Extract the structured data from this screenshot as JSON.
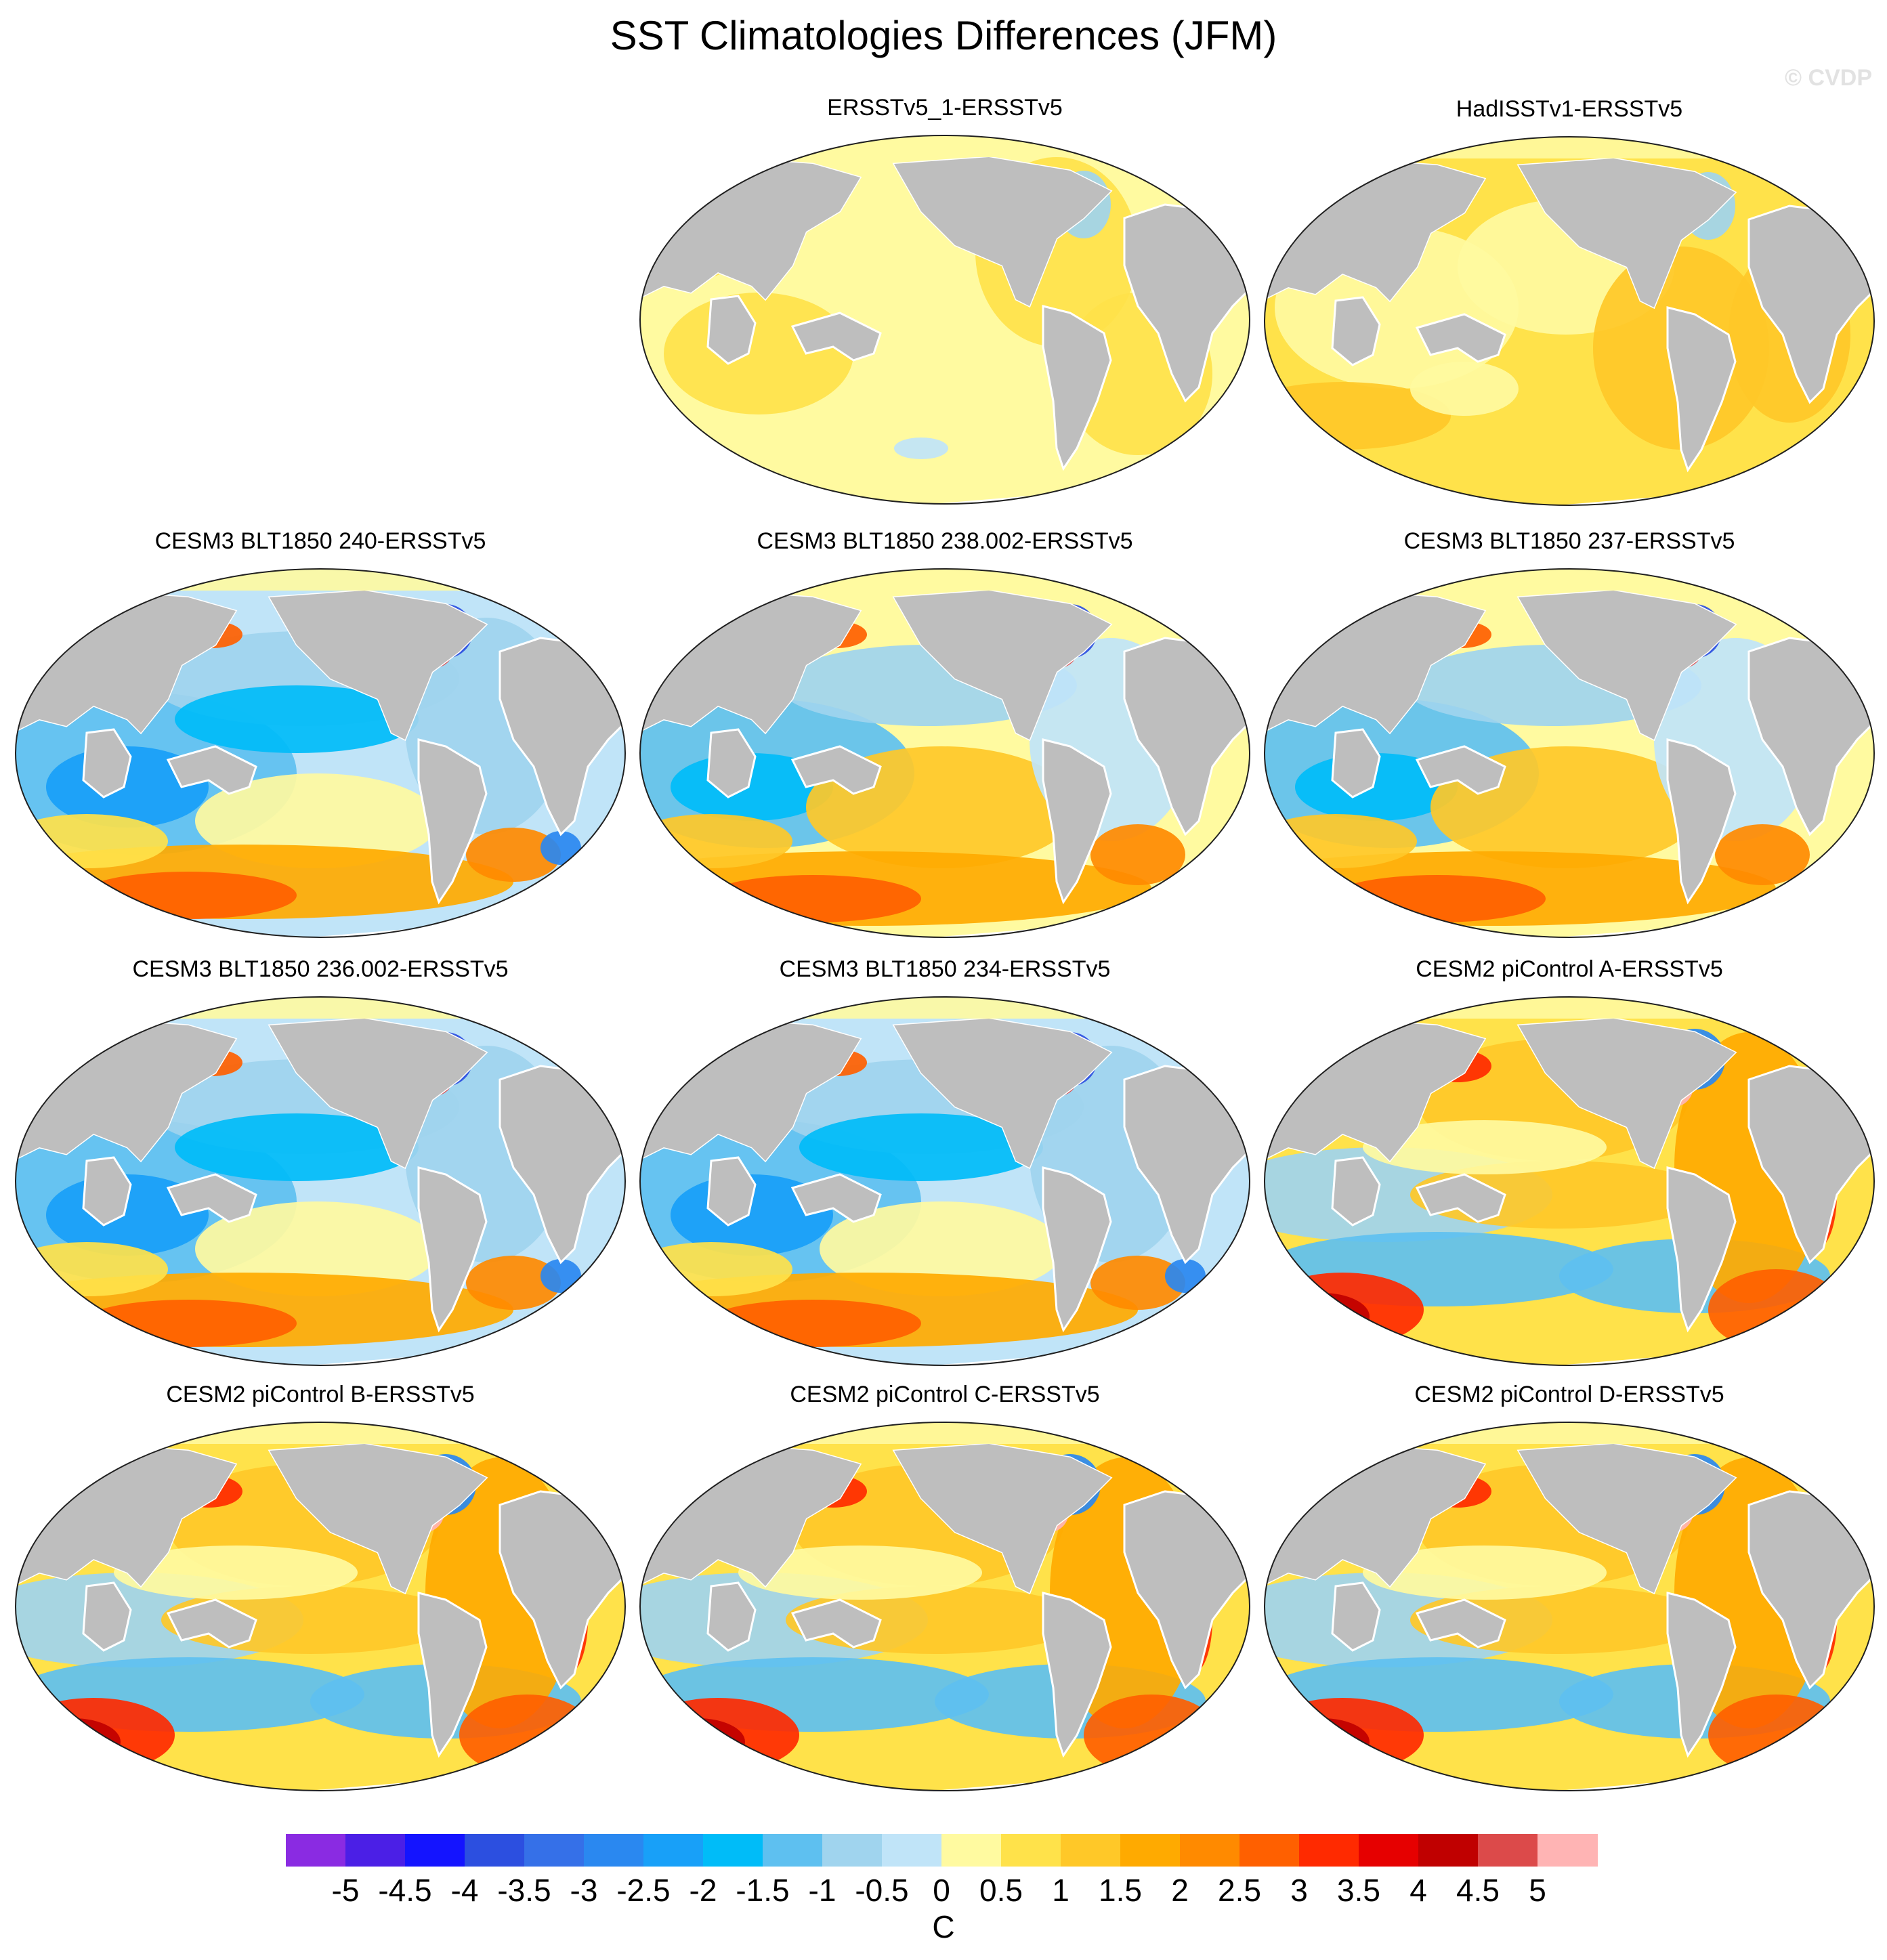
{
  "title": "SST Climatologies Differences (JFM)",
  "watermark": "© CVDP",
  "colors": {
    "land": "#bebebe",
    "ocean_frame_stroke": "#202020",
    "coast": "#ffffff"
  },
  "panels": [
    {
      "title": "ERSSTv5_1-ERSSTv5",
      "pattern": "small_positive"
    },
    {
      "title": "HadISSTv1-ERSSTv5",
      "pattern": "positive_mixed"
    },
    {
      "title": "CESM3 BLT1850 240-ERSSTv5",
      "pattern": "cesm3_cool"
    },
    {
      "title": "CESM3 BLT1850 238.002-ERSSTv5",
      "pattern": "cesm3_warm"
    },
    {
      "title": "CESM3 BLT1850 237-ERSSTv5",
      "pattern": "cesm3_warm"
    },
    {
      "title": "CESM3 BLT1850 236.002-ERSSTv5",
      "pattern": "cesm3_cool"
    },
    {
      "title": "CESM3 BLT1850 234-ERSSTv5",
      "pattern": "cesm3_cool"
    },
    {
      "title": "CESM2 piControl A-ERSSTv5",
      "pattern": "cesm2"
    },
    {
      "title": "CESM2 piControl B-ERSSTv5",
      "pattern": "cesm2"
    },
    {
      "title": "CESM2 piControl C-ERSSTv5",
      "pattern": "cesm2"
    },
    {
      "title": "CESM2 piControl D-ERSSTv5",
      "pattern": "cesm2"
    }
  ],
  "colorbar": {
    "unit": "C",
    "labels": [
      "-5",
      "-4.5",
      "-4",
      "-3.5",
      "-3",
      "-2.5",
      "-2",
      "-1.5",
      "-1",
      "-0.5",
      "0",
      "0.5",
      "1",
      "1.5",
      "2",
      "2.5",
      "3",
      "3.5",
      "4",
      "4.5",
      "5"
    ],
    "colors": [
      "#8a2be2",
      "#4b1fe6",
      "#1414ff",
      "#2c4fe0",
      "#3570e8",
      "#2a88f0",
      "#18a0f8",
      "#00bcf8",
      "#5ec0f0",
      "#a0d4ee",
      "#c0e4f8",
      "#fffaa0",
      "#ffe24a",
      "#ffc828",
      "#ffaa00",
      "#ff8a00",
      "#ff6000",
      "#ff2a00",
      "#e60000",
      "#c00000",
      "#dc4a4a",
      "#ffb4b4"
    ]
  }
}
